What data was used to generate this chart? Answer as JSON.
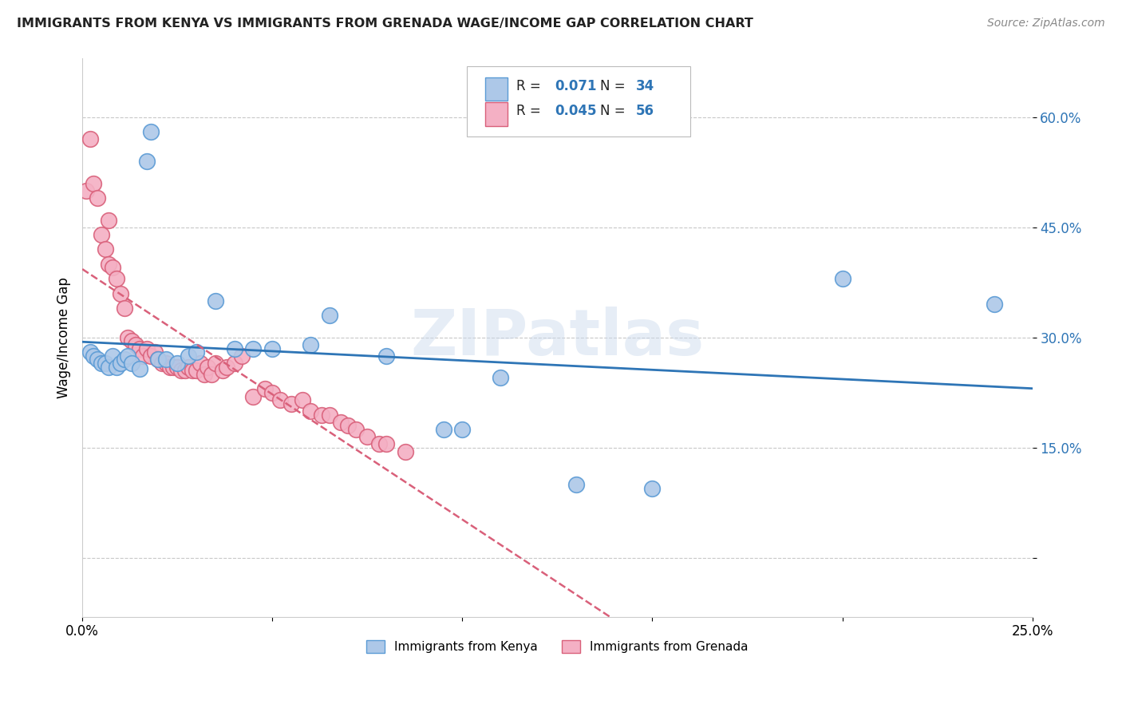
{
  "title": "IMMIGRANTS FROM KENYA VS IMMIGRANTS FROM GRENADA WAGE/INCOME GAP CORRELATION CHART",
  "source": "Source: ZipAtlas.com",
  "ylabel": "Wage/Income Gap",
  "xlim": [
    0.0,
    0.25
  ],
  "ylim": [
    -0.08,
    0.68
  ],
  "kenya_R": 0.071,
  "kenya_N": 34,
  "grenada_R": 0.045,
  "grenada_N": 56,
  "kenya_color": "#adc8e8",
  "kenya_edge_color": "#5b9bd5",
  "grenada_color": "#f4b0c4",
  "grenada_edge_color": "#d9607a",
  "kenya_line_color": "#2e75b6",
  "grenada_line_color": "#d9607a",
  "watermark": "ZIPatlas",
  "background_color": "#ffffff",
  "grid_color": "#c8c8c8",
  "kenya_x": [
    0.002,
    0.003,
    0.004,
    0.005,
    0.006,
    0.007,
    0.008,
    0.009,
    0.01,
    0.011,
    0.012,
    0.013,
    0.015,
    0.017,
    0.018,
    0.02,
    0.022,
    0.025,
    0.028,
    0.03,
    0.035,
    0.04,
    0.045,
    0.05,
    0.06,
    0.065,
    0.08,
    0.095,
    0.1,
    0.11,
    0.13,
    0.15,
    0.2,
    0.24
  ],
  "kenya_y": [
    0.28,
    0.275,
    0.27,
    0.265,
    0.265,
    0.26,
    0.275,
    0.26,
    0.265,
    0.27,
    0.275,
    0.265,
    0.258,
    0.54,
    0.58,
    0.27,
    0.27,
    0.265,
    0.275,
    0.28,
    0.35,
    0.285,
    0.285,
    0.285,
    0.29,
    0.33,
    0.275,
    0.175,
    0.175,
    0.245,
    0.1,
    0.095,
    0.38,
    0.345
  ],
  "grenada_x": [
    0.001,
    0.002,
    0.003,
    0.004,
    0.005,
    0.006,
    0.007,
    0.007,
    0.008,
    0.009,
    0.01,
    0.011,
    0.012,
    0.013,
    0.014,
    0.015,
    0.016,
    0.017,
    0.018,
    0.019,
    0.02,
    0.021,
    0.022,
    0.023,
    0.024,
    0.025,
    0.026,
    0.027,
    0.028,
    0.029,
    0.03,
    0.031,
    0.032,
    0.033,
    0.034,
    0.035,
    0.037,
    0.038,
    0.04,
    0.042,
    0.045,
    0.048,
    0.05,
    0.052,
    0.055,
    0.058,
    0.06,
    0.063,
    0.065,
    0.068,
    0.07,
    0.072,
    0.075,
    0.078,
    0.08,
    0.085
  ],
  "grenada_y": [
    0.5,
    0.57,
    0.51,
    0.49,
    0.44,
    0.42,
    0.46,
    0.4,
    0.395,
    0.38,
    0.36,
    0.34,
    0.3,
    0.295,
    0.29,
    0.285,
    0.275,
    0.285,
    0.275,
    0.28,
    0.27,
    0.265,
    0.265,
    0.26,
    0.26,
    0.26,
    0.255,
    0.255,
    0.26,
    0.255,
    0.255,
    0.265,
    0.25,
    0.26,
    0.25,
    0.265,
    0.255,
    0.26,
    0.265,
    0.275,
    0.22,
    0.23,
    0.225,
    0.215,
    0.21,
    0.215,
    0.2,
    0.195,
    0.195,
    0.185,
    0.18,
    0.175,
    0.165,
    0.155,
    0.155,
    0.145
  ]
}
